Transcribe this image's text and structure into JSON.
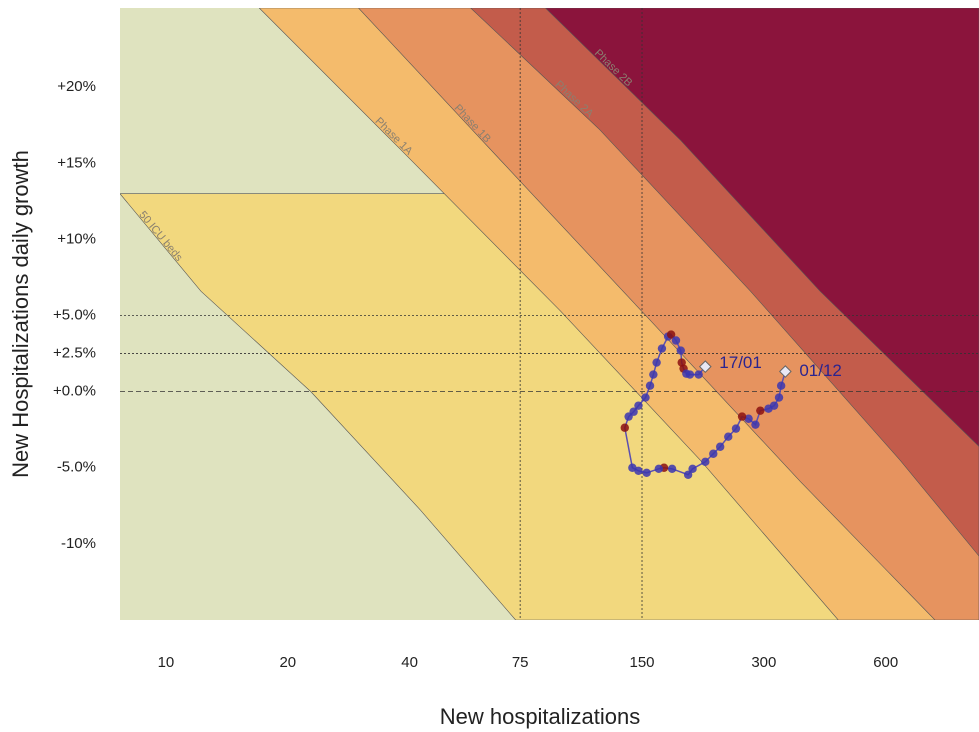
{
  "chart_data": {
    "type": "line",
    "xscale": "log",
    "xlabel": "New hospitalizations",
    "ylabel": "New Hospitalizations daily growth",
    "xlim": [
      7.7,
      1020
    ],
    "ylim": [
      -15,
      25.2
    ],
    "xticks": [
      10,
      20,
      40,
      75,
      150,
      300,
      600
    ],
    "yticks": [
      {
        "value": 20,
        "label": "+20%"
      },
      {
        "value": 15,
        "label": "+15%"
      },
      {
        "value": 10,
        "label": "+10%"
      },
      {
        "value": 5,
        "label": "+5.0%"
      },
      {
        "value": 2.5,
        "label": "+2.5%"
      },
      {
        "value": 0,
        "label": "+0.0%"
      },
      {
        "value": -5,
        "label": "-5.0%"
      },
      {
        "value": -10,
        "label": "-10%"
      }
    ],
    "x_ref_lines": [
      75,
      150
    ],
    "y_ref_lines": [
      5,
      2.5,
      0
    ],
    "background_color": "#dfe3bf",
    "bands": [
      {
        "label": "50 ICU beds",
        "color": "#f2d87e",
        "x": [
          7.7,
          12.2,
          22.8,
          42.6,
          73.1
        ],
        "y": [
          13,
          6.6,
          0,
          -7.8,
          -15
        ]
      },
      {
        "label": "Phase 1A",
        "color": "#f4bb6c",
        "x": [
          17,
          38,
          94.3,
          209,
          458
        ],
        "y": [
          25.2,
          15.9,
          5.3,
          -4.5,
          -15
        ]
      },
      {
        "label": "Phase 1B",
        "color": "#e6935f",
        "x": [
          29.9,
          67.1,
          157,
          369,
          794
        ],
        "y": [
          25.2,
          15.2,
          4.7,
          -5.9,
          -15
        ]
      },
      {
        "label": "Phase 2A",
        "color": "#c35c4b",
        "x": [
          56.6,
          118,
          278,
          651,
          1020
        ],
        "y": [
          25.2,
          17.2,
          6.6,
          -4.5,
          -10.8
        ]
      },
      {
        "label": "Phase 2B",
        "color": "#8b143c",
        "x": [
          86.6,
          187,
          413,
          1020
        ],
        "y": [
          25.2,
          16.5,
          6.6,
          -3.6
        ]
      }
    ],
    "series": [
      {
        "color": "#5b4fb0",
        "start_label": "01/12",
        "end_label": "17/01",
        "x": [
          339,
          331,
          327,
          318,
          308,
          294,
          286,
          275,
          265,
          256,
          245,
          234,
          225,
          215,
          200,
          195,
          178,
          170,
          165,
          154,
          147,
          142,
          136,
          139,
          143,
          147,
          153,
          157,
          160,
          163,
          168,
          174,
          177,
          182,
          187,
          188,
          190,
          193,
          197,
          207,
          215
        ],
        "values": [
          1.32,
          0.39,
          -0.39,
          -0.92,
          -1.12,
          -1.25,
          -2.17,
          -1.78,
          -1.64,
          -2.43,
          -2.96,
          -3.62,
          -4.08,
          -4.61,
          -5.07,
          -5.46,
          -5.07,
          -5.0,
          -5.07,
          -5.33,
          -5.2,
          -5.0,
          -2.37,
          -1.64,
          -1.32,
          -0.92,
          -0.39,
          0.39,
          1.12,
          1.91,
          2.83,
          3.62,
          3.75,
          3.36,
          2.7,
          1.91,
          1.51,
          1.18,
          1.12,
          1.12,
          1.64
        ],
        "point_colors": [
          "#3b36b0",
          "#3b36b0",
          "#3b36b0",
          "#3b36b0",
          "#3b36b0",
          "#8b1010",
          "#3b36b0",
          "#3b36b0",
          "#8b1010",
          "#3b36b0",
          "#3b36b0",
          "#3b36b0",
          "#3b36b0",
          "#3b36b0",
          "#3b36b0",
          "#3b36b0",
          "#3b36b0",
          "#8b1010",
          "#3b36b0",
          "#3b36b0",
          "#3b36b0",
          "#3b36b0",
          "#8b1010",
          "#3b36b0",
          "#3b36b0",
          "#3b36b0",
          "#3b36b0",
          "#3b36b0",
          "#3b36b0",
          "#3b36b0",
          "#3b36b0",
          "#3b36b0",
          "#8b1010",
          "#3b36b0",
          "#3b36b0",
          "#8b1010",
          "#8b1010",
          "#3b36b0",
          "#3b36b0",
          "#3b36b0",
          "#3b36b0"
        ]
      }
    ]
  }
}
